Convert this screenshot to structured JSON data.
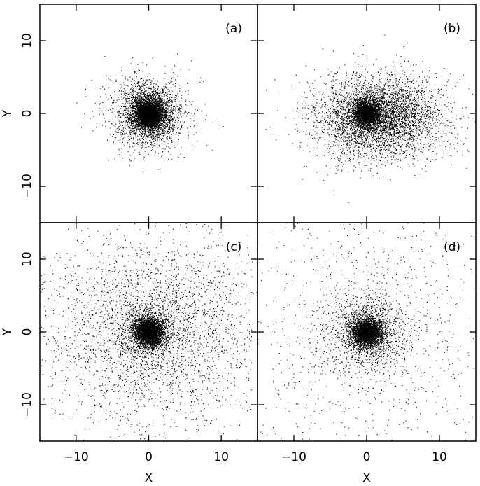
{
  "chart_data": {
    "type": "scatter",
    "layout": "2x2 grid, shared axes",
    "xlabel": "X",
    "ylabel": "Y",
    "xlim": [
      -15,
      15
    ],
    "ylim": [
      -15,
      15
    ],
    "x_ticks": [
      -10,
      0,
      10
    ],
    "y_ticks": [
      -10,
      0,
      10
    ],
    "x_tick_labels": [
      "−10",
      "0",
      "10"
    ],
    "y_tick_labels": [
      "−10",
      "0",
      "10"
    ],
    "grid": false,
    "legend": "none",
    "marker_color": "#000000",
    "panels": [
      {
        "label": "(a)",
        "description_of_distribution": "single dense core",
        "components": [
          {
            "cx": 0.0,
            "cy": 0.0,
            "sigma_x": 0.9,
            "sigma_y": 0.9,
            "n": 3500
          },
          {
            "cx": 0.0,
            "cy": 0.0,
            "sigma_x": 1.9,
            "sigma_y": 1.9,
            "n": 2200
          },
          {
            "cx": 0.0,
            "cy": 0.0,
            "sigma_x": 3.0,
            "sigma_y": 2.8,
            "n": 900
          }
        ]
      },
      {
        "label": "(b)",
        "description_of_distribution": "core with broad eastward-extended envelope",
        "components": [
          {
            "cx": 0.0,
            "cy": 0.0,
            "sigma_x": 0.9,
            "sigma_y": 0.9,
            "n": 2600
          },
          {
            "cx": 1.5,
            "cy": -0.5,
            "sigma_x": 4.0,
            "sigma_y": 2.6,
            "n": 3800
          },
          {
            "cx": 2.0,
            "cy": -0.5,
            "sigma_x": 5.2,
            "sigma_y": 3.4,
            "n": 1000
          }
        ]
      },
      {
        "label": "(c)",
        "description_of_distribution": "dense core with wide diffuse halo",
        "components": [
          {
            "cx": 0.0,
            "cy": 0.0,
            "sigma_x": 1.0,
            "sigma_y": 1.0,
            "n": 3000
          },
          {
            "cx": 0.0,
            "cy": 0.0,
            "sigma_x": 2.2,
            "sigma_y": 2.0,
            "n": 900
          },
          {
            "cx": 0.5,
            "cy": 0.0,
            "sigma_x": 7.5,
            "sigma_y": 6.5,
            "n": 3400
          }
        ]
      },
      {
        "label": "(d)",
        "description_of_distribution": "dense core with sparse uniform background",
        "components": [
          {
            "cx": 0.0,
            "cy": 0.0,
            "sigma_x": 1.0,
            "sigma_y": 1.0,
            "n": 2800
          },
          {
            "cx": 0.0,
            "cy": 0.0,
            "sigma_x": 2.6,
            "sigma_y": 2.4,
            "n": 1600
          },
          {
            "cx": 0.0,
            "cy": 0.0,
            "sigma_x": 9.0,
            "sigma_y": 9.0,
            "n": 1200
          }
        ]
      }
    ]
  }
}
